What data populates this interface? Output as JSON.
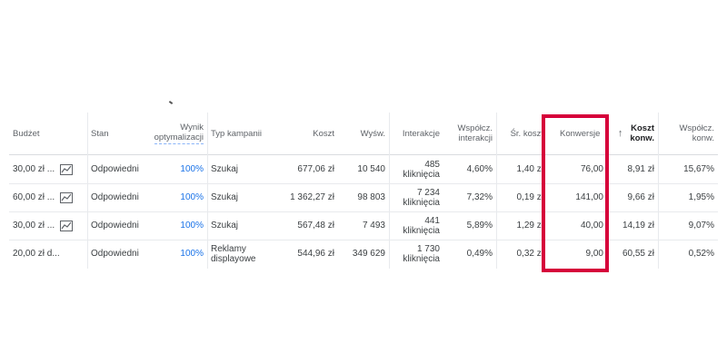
{
  "table": {
    "headers": {
      "budget": "Budżet",
      "status": "Stan",
      "optimization": [
        "Wynik",
        "optymalizacji"
      ],
      "campaign_type": "Typ kampanii",
      "cost": "Koszt",
      "impressions": "Wyśw.",
      "interactions": "Interakcje",
      "interaction_rate": [
        "Współcz.",
        "interakcji"
      ],
      "avg_cost": "Śr. koszt",
      "conversions": "Konwersje",
      "cost_per_conv": [
        "Koszt",
        "konw."
      ],
      "conv_rate": [
        "Współcz.",
        "konw."
      ]
    },
    "rows": [
      {
        "budget": "30,00 zł ...",
        "status": "Odpowiedni",
        "optimization": "100%",
        "campaign_type": [
          "Szukaj"
        ],
        "cost": "677,06 zł",
        "impressions": "10 540",
        "interactions": [
          "485",
          "kliknięcia"
        ],
        "interaction_rate": "4,60%",
        "avg_cost": "1,40 zł",
        "conversions": "76,00",
        "cost_per_conv": "8,91 zł",
        "conv_rate": "15,67%"
      },
      {
        "budget": "60,00 zł ...",
        "status": "Odpowiedni",
        "optimization": "100%",
        "campaign_type": [
          "Szukaj"
        ],
        "cost": "1 362,27 zł",
        "impressions": "98 803",
        "interactions": [
          "7 234",
          "kliknięcia"
        ],
        "interaction_rate": "7,32%",
        "avg_cost": "0,19 zł",
        "conversions": "141,00",
        "cost_per_conv": "9,66 zł",
        "conv_rate": "1,95%"
      },
      {
        "budget": "30,00 zł ...",
        "status": "Odpowiedni",
        "optimization": "100%",
        "campaign_type": [
          "Szukaj"
        ],
        "cost": "567,48 zł",
        "impressions": "7 493",
        "interactions": [
          "441",
          "kliknięcia"
        ],
        "interaction_rate": "5,89%",
        "avg_cost": "1,29 zł",
        "conversions": "40,00",
        "cost_per_conv": "14,19 zł",
        "conv_rate": "9,07%"
      },
      {
        "budget": "20,00 zł d...",
        "status": "Odpowiedni",
        "optimization": "100%",
        "campaign_type": [
          "Reklamy",
          "displayowe"
        ],
        "cost": "544,96 zł",
        "impressions": "349 629",
        "interactions": [
          "1 730",
          "kliknięcia"
        ],
        "interaction_rate": "0,49%",
        "avg_cost": "0,32 zł",
        "conversions": "9,00",
        "cost_per_conv": "60,55 zł",
        "conv_rate": "0,52%"
      }
    ]
  },
  "icons": {
    "trend": "trend-chart-icon",
    "sort": "arrow-up-icon"
  },
  "colors": {
    "highlight": "#d6003a",
    "link_blue": "#1a73e8"
  }
}
